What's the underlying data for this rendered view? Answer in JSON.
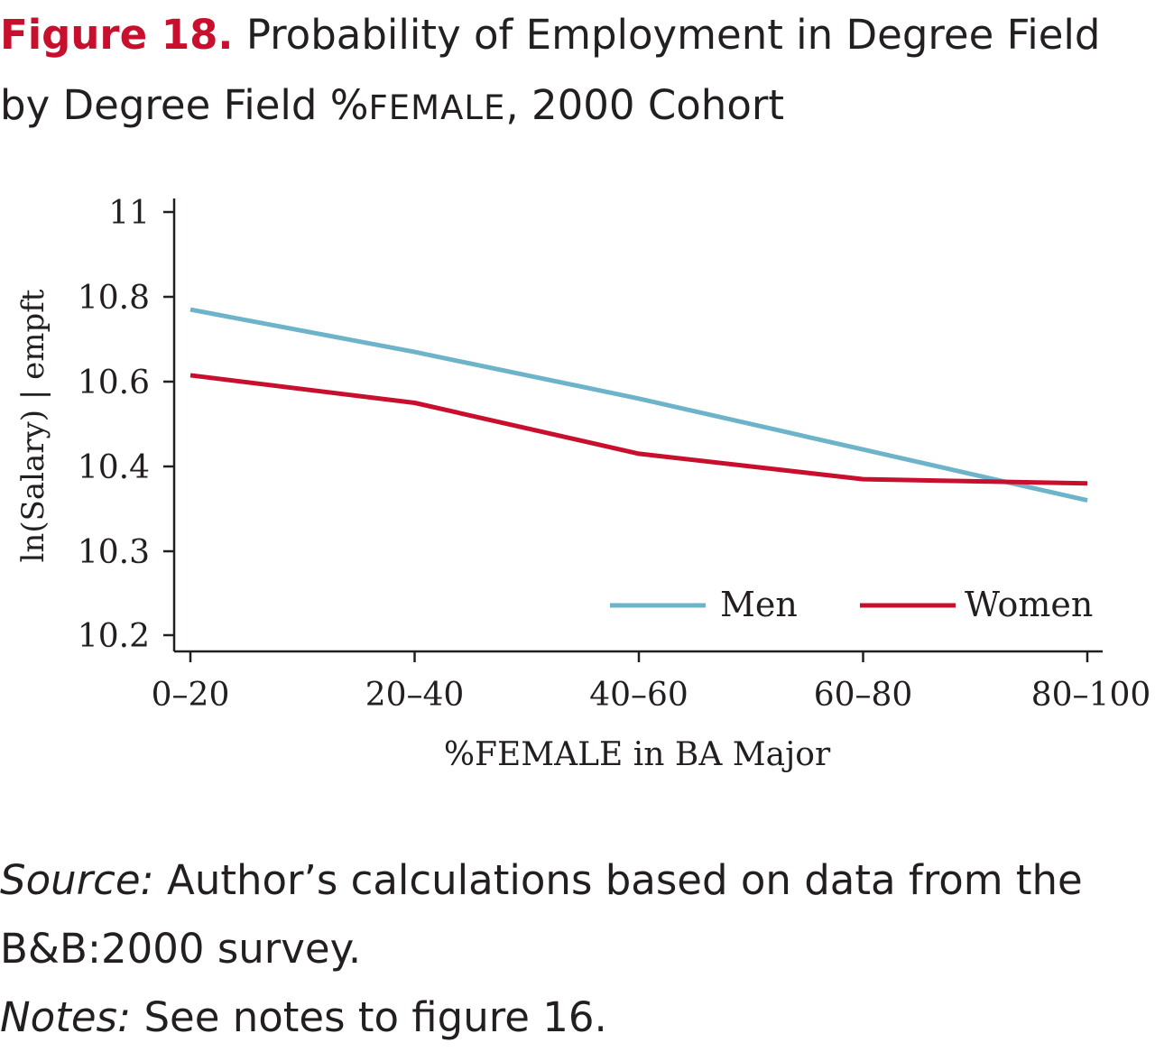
{
  "figure": {
    "label": "Figure 18.",
    "title_part1": "Probability of Employment in Degree Field by Degree Field %",
    "title_smallcaps": "FEMALE",
    "title_part2": ", 2000 Cohort"
  },
  "chart_data": {
    "type": "line",
    "categories": [
      "0–20",
      "20–40",
      "40–60",
      "60–80",
      "80–100"
    ],
    "series": [
      {
        "name": "Men",
        "color": "#6db3c9",
        "values": [
          10.77,
          10.67,
          10.56,
          10.44,
          10.36
        ]
      },
      {
        "name": "Women",
        "color": "#c8102e",
        "values": [
          10.615,
          10.55,
          10.43,
          10.385,
          10.38
        ]
      }
    ],
    "y_ticks": [
      {
        "value": 10.2,
        "label": "10.2"
      },
      {
        "value": 10.3,
        "label": "10.3"
      },
      {
        "value": 10.4,
        "label": "10.4"
      },
      {
        "value": 10.6,
        "label": "10.6"
      },
      {
        "value": 10.8,
        "label": "10.8"
      },
      {
        "value": 11.0,
        "label": "11"
      }
    ],
    "xlabel": "%FEMALE in BA Major",
    "ylabel": "ln(Salary) | empft",
    "ylim": [
      10.2,
      11.0
    ],
    "grid": false,
    "legend_position": "bottom-right"
  },
  "footer": {
    "source_label": "Source:",
    "source_text": "Author’s calculations based on data from the B&B:2000 survey.",
    "notes_label": "Notes:",
    "notes_text": "See notes to figure 16."
  }
}
